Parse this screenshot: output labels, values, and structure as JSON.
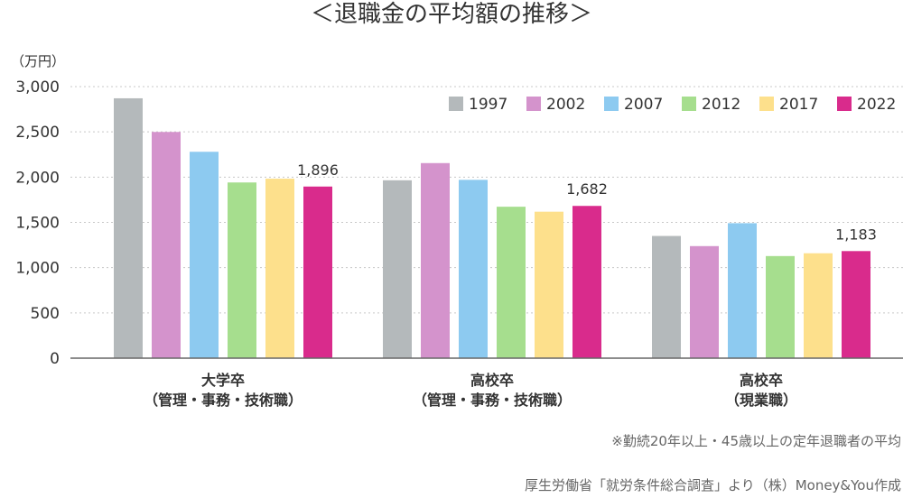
{
  "chart_data": {
    "type": "bar",
    "title": "＜退職金の平均額の推移＞",
    "ylabel": "（万円）",
    "xlabel": "",
    "ylim": [
      0,
      3000
    ],
    "yticks": [
      0,
      500,
      1000,
      1500,
      2000,
      2500,
      3000
    ],
    "ytick_labels": [
      "0",
      "500",
      "1,000",
      "1,500",
      "2,000",
      "2,500",
      "3,000"
    ],
    "grid": true,
    "legend_position": "top-right",
    "categories": [
      [
        "大学卒",
        "（管理・事務・技術職）"
      ],
      [
        "高校卒",
        "（管理・事務・技術職）"
      ],
      [
        "高校卒",
        "（現業職）"
      ]
    ],
    "series": [
      {
        "name": "1997",
        "color": "#b4b9bb",
        "values": [
          2871,
          1965,
          1350
        ]
      },
      {
        "name": "2002",
        "color": "#d493cc",
        "values": [
          2499,
          2155,
          1238
        ]
      },
      {
        "name": "2007",
        "color": "#8dcaf0",
        "values": [
          2280,
          1970,
          1491
        ]
      },
      {
        "name": "2012",
        "color": "#a6de8e",
        "values": [
          1941,
          1673,
          1128
        ]
      },
      {
        "name": "2017",
        "color": "#fde08c",
        "values": [
          1983,
          1618,
          1159
        ]
      },
      {
        "name": "2022",
        "color": "#d92b8c",
        "values": [
          1896,
          1682,
          1183
        ]
      }
    ],
    "data_labels": [
      {
        "series": "2022",
        "category_index": 0,
        "text": "1,896"
      },
      {
        "series": "2022",
        "category_index": 1,
        "text": "1,682"
      },
      {
        "series": "2022",
        "category_index": 2,
        "text": "1,183"
      }
    ]
  },
  "notes": {
    "footnote": "※勤続20年以上・45歳以上の定年退職者の平均",
    "source": "厚生労働省「就労条件総合調査」より（株）Money&You作成"
  }
}
